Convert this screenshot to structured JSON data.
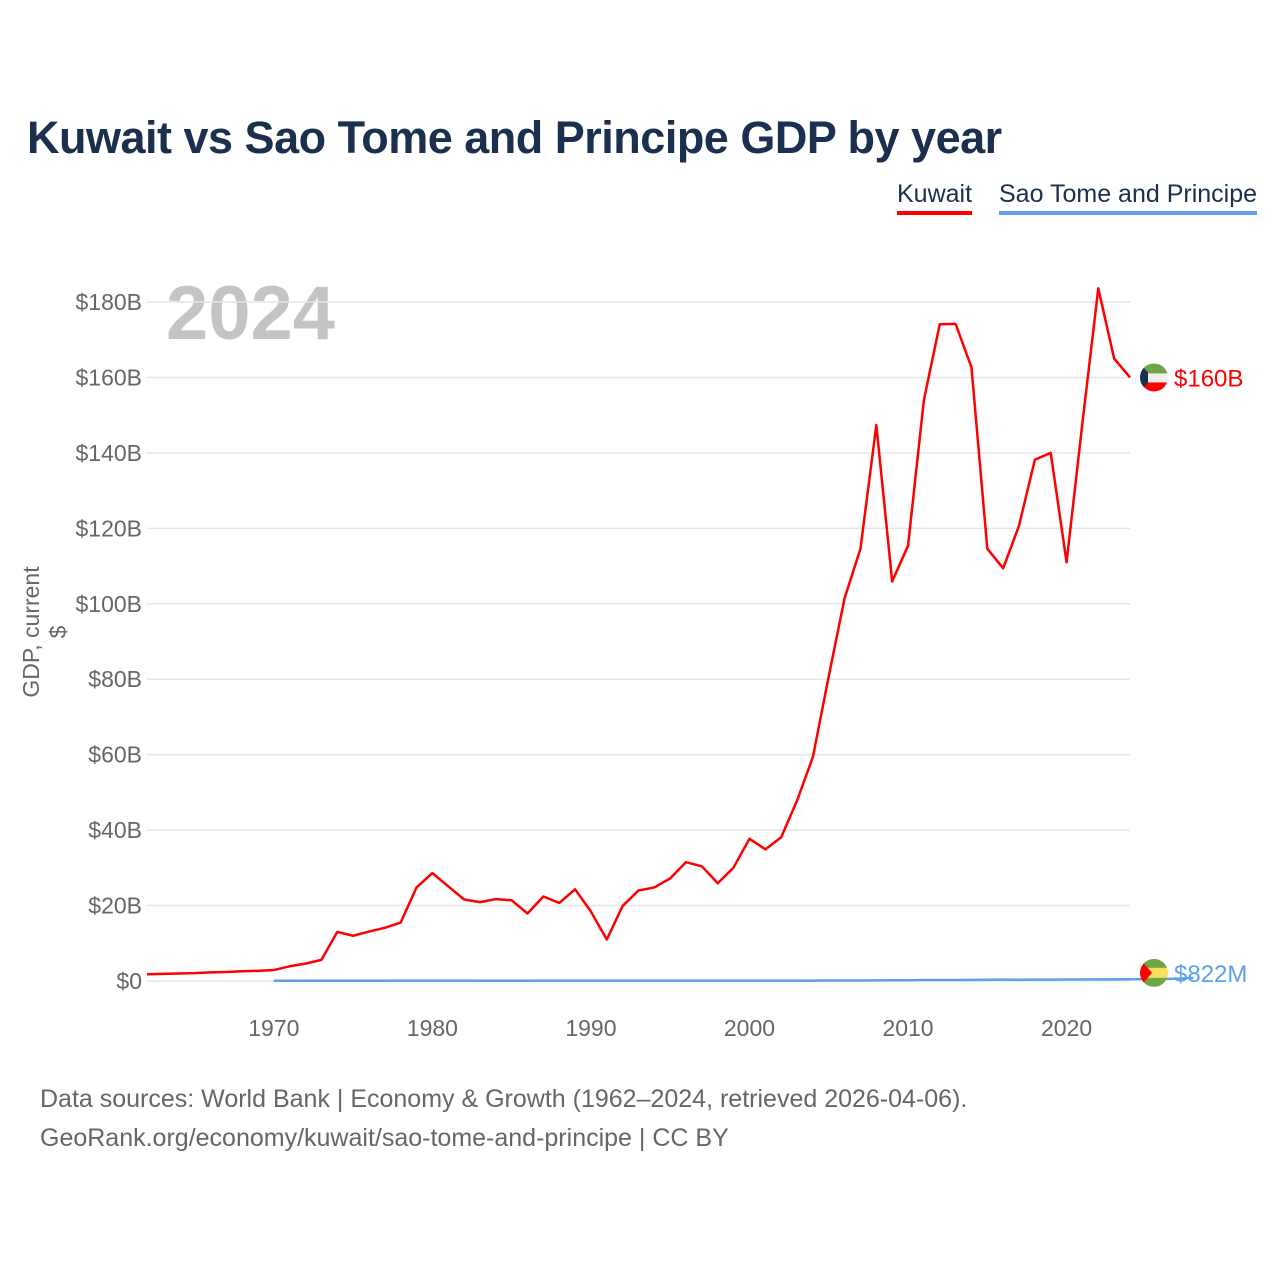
{
  "title": "Kuwait vs Sao Tome and Principe GDP by year",
  "year_label": "2024",
  "footer": {
    "line1": "Data sources: World Bank | Economy & Growth (1962–2024, retrieved 2026-04-06).",
    "line2": "GeoRank.org/economy/kuwait/sao-tome-and-principe | CC BY"
  },
  "chart_data": {
    "type": "line",
    "title": "Kuwait vs Sao Tome and Principe GDP by year",
    "xlabel": "",
    "ylabel": "GDP, current $",
    "xlim": [
      1962,
      2024
    ],
    "ylim": [
      0,
      180
    ],
    "y_unit": "billions USD",
    "grid": true,
    "legend_placement": "top-right",
    "x_ticks": [
      "1970",
      "1980",
      "1990",
      "2000",
      "2010",
      "2020"
    ],
    "x_tick_values": [
      1970,
      1980,
      1990,
      2000,
      2010,
      2020
    ],
    "y_ticks": [
      "$0",
      "$20B",
      "$40B",
      "$60B",
      "$80B",
      "$100B",
      "$120B",
      "$140B",
      "$160B",
      "$180B"
    ],
    "y_tick_values": [
      0,
      20,
      40,
      60,
      80,
      100,
      120,
      140,
      160,
      180
    ],
    "series": [
      {
        "name": "Kuwait",
        "color": "#ff0000",
        "end_label": "$160B",
        "start_year": 1962,
        "values": [
          1.8,
          1.9,
          2.0,
          2.1,
          2.3,
          2.4,
          2.6,
          2.7,
          2.9,
          3.9,
          4.6,
          5.6,
          13.0,
          12.0,
          13.1,
          14.1,
          15.5,
          24.8,
          28.6,
          25.1,
          21.6,
          20.9,
          21.7,
          21.4,
          17.9,
          22.4,
          20.7,
          24.3,
          18.4,
          11.0,
          19.9,
          24.0,
          24.8,
          27.2,
          31.5,
          30.4,
          25.9,
          30.1,
          37.7,
          34.9,
          38.1,
          47.8,
          59.4,
          80.8,
          101.5,
          114.6,
          147.4,
          105.9,
          115.4,
          154.0,
          174.1,
          174.2,
          162.7,
          114.6,
          109.4,
          120.7,
          138.2,
          140.0,
          111.0,
          148.0,
          183.6,
          165.0,
          160.0
        ]
      },
      {
        "name": "Sao Tome and Principe",
        "color": "#5fa0e8",
        "end_label": "$822M",
        "start_year": 1970,
        "values": [
          0.05,
          0.05,
          0.05,
          0.06,
          0.07,
          0.07,
          0.07,
          0.08,
          0.09,
          0.1,
          0.1,
          0.09,
          0.09,
          0.08,
          0.07,
          0.08,
          0.08,
          0.09,
          0.09,
          0.1,
          0.1,
          0.1,
          0.1,
          0.1,
          0.1,
          0.1,
          0.1,
          0.1,
          0.1,
          0.1,
          0.1,
          0.1,
          0.1,
          0.1,
          0.1,
          0.12,
          0.13,
          0.14,
          0.17,
          0.2,
          0.2,
          0.25,
          0.25,
          0.28,
          0.3,
          0.32,
          0.35,
          0.32,
          0.35,
          0.35,
          0.4,
          0.4,
          0.42,
          0.43,
          0.48,
          0.47,
          0.53,
          0.6,
          0.822
        ]
      }
    ]
  }
}
